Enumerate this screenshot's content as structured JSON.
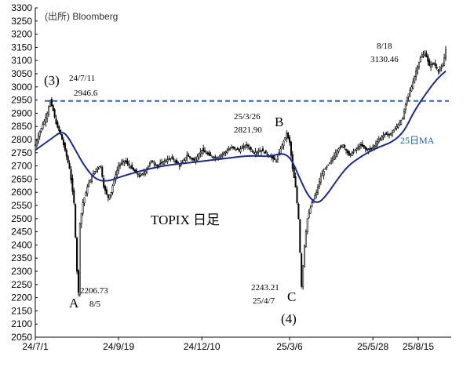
{
  "chart_data": {
    "type": "candlestick",
    "source": "(出所) Bloomberg",
    "title": "TOPIX 日足",
    "ylim": [
      2050,
      3300
    ],
    "y_ticks": [
      2050,
      2100,
      2150,
      2200,
      2250,
      2300,
      2350,
      2400,
      2450,
      2500,
      2550,
      2600,
      2650,
      2700,
      2750,
      2800,
      2850,
      2900,
      2950,
      3000,
      3050,
      3100,
      3150,
      3200,
      3250,
      3300
    ],
    "x_ticks": [
      "24/7/1",
      "24/9/19",
      "24/12/10",
      "25/3/6",
      "25/5/28",
      "25/8/15"
    ],
    "grid": false,
    "reference_line": {
      "value": 2946.6,
      "color": "#2e62c0",
      "style": "dashed"
    },
    "ma_label": "25日MA",
    "annotations": [
      {
        "id": "a3",
        "text": "(3)",
        "style": "big"
      },
      {
        "id": "a1",
        "text": "24/7/11",
        "style": "note"
      },
      {
        "id": "a2",
        "text": "2946.6",
        "style": "note"
      },
      {
        "id": "aA",
        "text": "A",
        "style": "big"
      },
      {
        "id": "aA1",
        "text": "2206.73",
        "style": "note"
      },
      {
        "id": "aA2",
        "text": "8/5",
        "style": "note"
      },
      {
        "id": "aB1",
        "text": "25/3/26",
        "style": "note"
      },
      {
        "id": "aB2",
        "text": "2821.90",
        "style": "note"
      },
      {
        "id": "aB",
        "text": "B",
        "style": "big"
      },
      {
        "id": "aC1",
        "text": "2243.21",
        "style": "note"
      },
      {
        "id": "aC2",
        "text": "25/4/7",
        "style": "note"
      },
      {
        "id": "aC",
        "text": "C",
        "style": "big"
      },
      {
        "id": "a4",
        "text": "(4)",
        "style": "big"
      },
      {
        "id": "aD1",
        "text": "8/18",
        "style": "note"
      },
      {
        "id": "aD2",
        "text": "3130.46",
        "style": "note"
      }
    ],
    "close_path": [
      [
        0,
        2780
      ],
      [
        3,
        2830
      ],
      [
        6,
        2870
      ],
      [
        8,
        2900
      ],
      [
        10,
        2946.6
      ],
      [
        12,
        2910
      ],
      [
        14,
        2860
      ],
      [
        17,
        2820
      ],
      [
        20,
        2760
      ],
      [
        23,
        2690
      ],
      [
        26,
        2560
      ],
      [
        28,
        2300
      ],
      [
        29,
        2220
      ],
      [
        30,
        2480
      ],
      [
        32,
        2560
      ],
      [
        35,
        2620
      ],
      [
        38,
        2660
      ],
      [
        41,
        2690
      ],
      [
        44,
        2700
      ],
      [
        46,
        2620
      ],
      [
        49,
        2580
      ],
      [
        51,
        2600
      ],
      [
        53,
        2650
      ],
      [
        56,
        2700
      ],
      [
        60,
        2720
      ],
      [
        65,
        2690
      ],
      [
        70,
        2660
      ],
      [
        74,
        2680
      ],
      [
        78,
        2720
      ],
      [
        82,
        2700
      ],
      [
        87,
        2720
      ],
      [
        92,
        2730
      ],
      [
        97,
        2700
      ],
      [
        102,
        2740
      ],
      [
        107,
        2720
      ],
      [
        112,
        2760
      ],
      [
        117,
        2740
      ],
      [
        122,
        2730
      ],
      [
        127,
        2750
      ],
      [
        132,
        2770
      ],
      [
        137,
        2760
      ],
      [
        142,
        2780
      ],
      [
        147,
        2750
      ],
      [
        152,
        2760
      ],
      [
        157,
        2740
      ],
      [
        162,
        2720
      ],
      [
        166,
        2780
      ],
      [
        169,
        2821.9
      ],
      [
        171,
        2790
      ],
      [
        173,
        2690
      ],
      [
        175,
        2620
      ],
      [
        177,
        2500
      ],
      [
        179,
        2243.21
      ],
      [
        181,
        2400
      ],
      [
        183,
        2500
      ],
      [
        186,
        2560
      ],
      [
        189,
        2600
      ],
      [
        192,
        2660
      ],
      [
        195,
        2690
      ],
      [
        199,
        2720
      ],
      [
        203,
        2760
      ],
      [
        207,
        2780
      ],
      [
        211,
        2740
      ],
      [
        215,
        2760
      ],
      [
        219,
        2780
      ],
      [
        223,
        2760
      ],
      [
        227,
        2770
      ],
      [
        231,
        2800
      ],
      [
        235,
        2820
      ],
      [
        239,
        2820
      ],
      [
        243,
        2850
      ],
      [
        247,
        2880
      ],
      [
        250,
        2960
      ],
      [
        253,
        3000
      ],
      [
        256,
        3060
      ],
      [
        259,
        3110
      ],
      [
        262,
        3130.46
      ],
      [
        265,
        3080
      ],
      [
        268,
        3090
      ],
      [
        271,
        3060
      ],
      [
        274,
        3080
      ],
      [
        276,
        3140
      ]
    ],
    "ma25": [
      [
        0,
        2760
      ],
      [
        10,
        2800
      ],
      [
        17,
        2830
      ],
      [
        21,
        2820
      ],
      [
        27,
        2760
      ],
      [
        33,
        2700
      ],
      [
        40,
        2650
      ],
      [
        48,
        2640
      ],
      [
        58,
        2660
      ],
      [
        70,
        2680
      ],
      [
        85,
        2700
      ],
      [
        100,
        2710
      ],
      [
        115,
        2720
      ],
      [
        130,
        2730
      ],
      [
        145,
        2740
      ],
      [
        158,
        2735
      ],
      [
        166,
        2750
      ],
      [
        172,
        2730
      ],
      [
        178,
        2650
      ],
      [
        184,
        2580
      ],
      [
        190,
        2555
      ],
      [
        196,
        2590
      ],
      [
        202,
        2640
      ],
      [
        210,
        2700
      ],
      [
        220,
        2740
      ],
      [
        230,
        2770
      ],
      [
        240,
        2790
      ],
      [
        248,
        2830
      ],
      [
        254,
        2900
      ],
      [
        262,
        2970
      ],
      [
        270,
        3030
      ],
      [
        276,
        3060
      ]
    ]
  }
}
